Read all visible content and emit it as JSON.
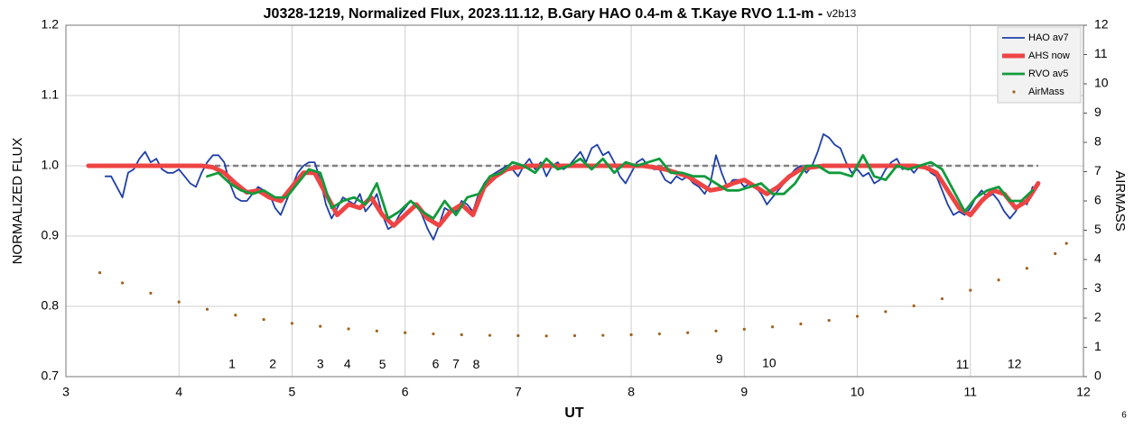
{
  "chart_data": {
    "type": "line",
    "title": "J0328-1219, Normalized Flux, 2023.11.12, B.Gary HAO 0.4-m & T.Kaye RVO 1.1-m - ",
    "title_version": "v2b13",
    "x_label": "UT",
    "y_label": "NORMALIZED FLUX",
    "y2_label": "AIRMASS",
    "footer": "6",
    "xlim": [
      3,
      12
    ],
    "xticks": [
      3,
      4,
      5,
      6,
      7,
      8,
      9,
      10,
      11,
      12
    ],
    "ylim": [
      0.7,
      1.2
    ],
    "yticks": [
      0.7,
      0.8,
      0.9,
      {
        "value": 1,
        "label": "1.0"
      },
      1.1,
      1.2
    ],
    "y2lim": [
      0,
      12
    ],
    "y2ticks": [
      0,
      1,
      2,
      3,
      4,
      5,
      6,
      7,
      8,
      9,
      10,
      11,
      12
    ],
    "grid": true,
    "legend": "upper right",
    "reference_line": {
      "value": 1,
      "x": [
        3.2,
        11.6
      ],
      "color": "#808080"
    },
    "series": [
      {
        "name": "HAO av7",
        "color": "#1f3fa8",
        "width": 1.8,
        "x": [
          3.35,
          3.4,
          3.45,
          3.5,
          3.55,
          3.6,
          3.65,
          3.7,
          3.75,
          3.8,
          3.85,
          3.9,
          3.95,
          4.0,
          4.05,
          4.1,
          4.15,
          4.2,
          4.25,
          4.3,
          4.35,
          4.4,
          4.45,
          4.5,
          4.55,
          4.6,
          4.65,
          4.7,
          4.75,
          4.8,
          4.85,
          4.9,
          4.95,
          5.0,
          5.05,
          5.1,
          5.15,
          5.2,
          5.25,
          5.3,
          5.35,
          5.4,
          5.45,
          5.5,
          5.55,
          5.6,
          5.65,
          5.7,
          5.75,
          5.8,
          5.85,
          5.9,
          5.95,
          6.0,
          6.05,
          6.1,
          6.15,
          6.2,
          6.25,
          6.3,
          6.35,
          6.4,
          6.45,
          6.5,
          6.55,
          6.6,
          6.65,
          6.7,
          6.75,
          6.8,
          6.85,
          6.9,
          6.95,
          7.0,
          7.05,
          7.1,
          7.15,
          7.2,
          7.25,
          7.3,
          7.35,
          7.4,
          7.45,
          7.5,
          7.55,
          7.6,
          7.65,
          7.7,
          7.75,
          7.8,
          7.85,
          7.9,
          7.95,
          8.0,
          8.05,
          8.1,
          8.15,
          8.2,
          8.25,
          8.3,
          8.35,
          8.4,
          8.45,
          8.5,
          8.55,
          8.6,
          8.65,
          8.7,
          8.75,
          8.8,
          8.85,
          8.9,
          8.95,
          9.0,
          9.05,
          9.1,
          9.15,
          9.2,
          9.25,
          9.3,
          9.35,
          9.4,
          9.45,
          9.5,
          9.55,
          9.6,
          9.65,
          9.7,
          9.75,
          9.8,
          9.85,
          9.9,
          9.95,
          10.0,
          10.05,
          10.1,
          10.15,
          10.2,
          10.25,
          10.3,
          10.35,
          10.4,
          10.45,
          10.5,
          10.55,
          10.6,
          10.65,
          10.7,
          10.75,
          10.8,
          10.85,
          10.9,
          10.95,
          11.0,
          11.05,
          11.1,
          11.15,
          11.2,
          11.25,
          11.3,
          11.35,
          11.4,
          11.45,
          11.5,
          11.55
        ],
        "values": [
          0.985,
          0.985,
          0.97,
          0.955,
          0.99,
          0.995,
          1.01,
          1.02,
          1.005,
          1.01,
          0.995,
          0.99,
          0.99,
          0.995,
          0.985,
          0.975,
          0.97,
          0.99,
          1.005,
          1.015,
          1.015,
          1.005,
          0.975,
          0.955,
          0.95,
          0.95,
          0.96,
          0.97,
          0.965,
          0.96,
          0.94,
          0.93,
          0.95,
          0.97,
          0.99,
          1.0,
          1.005,
          1.005,
          0.98,
          0.945,
          0.925,
          0.94,
          0.955,
          0.95,
          0.945,
          0.96,
          0.935,
          0.945,
          0.96,
          0.93,
          0.91,
          0.915,
          0.93,
          0.94,
          0.95,
          0.945,
          0.93,
          0.91,
          0.895,
          0.915,
          0.94,
          0.935,
          0.935,
          0.95,
          0.945,
          0.935,
          0.96,
          0.975,
          0.985,
          0.99,
          0.995,
          1.0,
          0.995,
          0.985,
          1.0,
          1.01,
          0.995,
          1.005,
          0.985,
          1.0,
          1.005,
          0.995,
          1.0,
          1.01,
          1.02,
          1.005,
          1.025,
          1.03,
          1.015,
          1.02,
          1.005,
          0.985,
          0.975,
          0.99,
          1.005,
          1.01,
          1.0,
          0.995,
          0.995,
          0.98,
          0.975,
          0.985,
          0.98,
          0.985,
          0.975,
          0.97,
          0.96,
          0.975,
          1.015,
          0.99,
          0.97,
          0.98,
          0.98,
          0.97,
          0.975,
          0.97,
          0.96,
          0.945,
          0.955,
          0.965,
          0.975,
          0.985,
          0.995,
          1.0,
          0.99,
          1.0,
          1.02,
          1.045,
          1.04,
          1.03,
          1.025,
          1.005,
          0.99,
          0.995,
          0.985,
          0.99,
          0.975,
          0.98,
          0.995,
          1.005,
          1.01,
          0.995,
          1.0,
          0.99,
          1.0,
          1.0,
          0.99,
          0.985,
          0.965,
          0.945,
          0.93,
          0.935,
          0.93,
          0.94,
          0.955,
          0.965,
          0.955,
          0.96,
          0.95,
          0.935,
          0.925,
          0.935,
          0.95,
          0.945,
          0.97
        ]
      },
      {
        "name": "AHS now",
        "color": "#ee4444",
        "width": 5,
        "x": [
          3.2,
          3.3,
          3.4,
          3.5,
          3.6,
          3.7,
          3.8,
          3.9,
          4.0,
          4.1,
          4.2,
          4.3,
          4.4,
          4.5,
          4.6,
          4.7,
          4.8,
          4.9,
          5.0,
          5.1,
          5.2,
          5.3,
          5.4,
          5.5,
          5.6,
          5.7,
          5.8,
          5.9,
          6.0,
          6.1,
          6.2,
          6.3,
          6.4,
          6.5,
          6.6,
          6.7,
          6.8,
          6.9,
          7.0,
          7.1,
          7.2,
          7.3,
          7.4,
          7.5,
          7.6,
          7.7,
          7.8,
          7.9,
          8.0,
          8.1,
          8.2,
          8.3,
          8.4,
          8.5,
          8.6,
          8.7,
          8.8,
          8.9,
          9.0,
          9.1,
          9.2,
          9.3,
          9.4,
          9.5,
          9.6,
          9.7,
          9.8,
          9.9,
          10.0,
          10.1,
          10.2,
          10.3,
          10.4,
          10.5,
          10.6,
          10.7,
          10.8,
          10.9,
          11.0,
          11.1,
          11.2,
          11.3,
          11.4,
          11.5,
          11.6
        ],
        "values": [
          1,
          1,
          1,
          1,
          1,
          1,
          1,
          1,
          1,
          1,
          1,
          0.998,
          0.99,
          0.975,
          0.962,
          0.965,
          0.955,
          0.95,
          0.97,
          0.99,
          0.99,
          0.96,
          0.93,
          0.945,
          0.94,
          0.955,
          0.93,
          0.915,
          0.93,
          0.945,
          0.925,
          0.915,
          0.935,
          0.945,
          0.93,
          0.97,
          0.985,
          0.995,
          0.998,
          1,
          1,
          1,
          1,
          1,
          1,
          1,
          1,
          1,
          1,
          1,
          0.998,
          0.995,
          0.99,
          0.985,
          0.975,
          0.965,
          0.968,
          0.975,
          0.98,
          0.97,
          0.96,
          0.97,
          0.985,
          0.995,
          0.998,
          1,
          1,
          1,
          1,
          1,
          1,
          1,
          1,
          1,
          0.998,
          0.99,
          0.965,
          0.94,
          0.93,
          0.95,
          0.965,
          0.96,
          0.94,
          0.95,
          0.975
        ]
      },
      {
        "name": "RVO av5",
        "color": "#129a3c",
        "width": 2.8,
        "x": [
          4.25,
          4.35,
          4.45,
          4.55,
          4.65,
          4.75,
          4.85,
          4.95,
          5.05,
          5.15,
          5.25,
          5.35,
          5.45,
          5.55,
          5.65,
          5.75,
          5.85,
          5.95,
          6.05,
          6.15,
          6.25,
          6.35,
          6.45,
          6.55,
          6.65,
          6.75,
          6.85,
          6.95,
          7.05,
          7.15,
          7.25,
          7.35,
          7.45,
          7.55,
          7.65,
          7.75,
          7.85,
          7.95,
          8.05,
          8.15,
          8.25,
          8.35,
          8.45,
          8.55,
          8.65,
          8.75,
          8.85,
          8.95,
          9.05,
          9.15,
          9.25,
          9.35,
          9.45,
          9.55,
          9.65,
          9.75,
          9.85,
          9.95,
          10.05,
          10.15,
          10.25,
          10.35,
          10.45,
          10.55,
          10.65,
          10.75,
          10.85,
          10.95,
          11.05,
          11.15,
          11.25,
          11.35,
          11.45,
          11.55
        ],
        "values": [
          0.985,
          0.99,
          0.975,
          0.965,
          0.96,
          0.965,
          0.955,
          0.955,
          0.975,
          0.995,
          0.99,
          0.94,
          0.95,
          0.955,
          0.945,
          0.975,
          0.925,
          0.935,
          0.95,
          0.935,
          0.925,
          0.95,
          0.93,
          0.955,
          0.96,
          0.985,
          0.99,
          1.005,
          1.0,
          0.99,
          1.01,
          0.995,
          1.0,
          1.01,
          0.995,
          1.01,
          0.99,
          1.005,
          1.0,
          1.005,
          1.01,
          0.99,
          0.99,
          0.985,
          0.985,
          0.975,
          0.965,
          0.965,
          0.97,
          0.975,
          0.96,
          0.96,
          0.975,
          1.0,
          1.0,
          0.99,
          0.99,
          0.985,
          1.015,
          0.985,
          0.98,
          1.0,
          0.995,
          1.0,
          1.005,
          0.995,
          0.965,
          0.935,
          0.955,
          0.965,
          0.97,
          0.95,
          0.95,
          0.965
        ]
      },
      {
        "name": "AirMass",
        "color": "#a0621e",
        "axis": "y2",
        "marker": "dot",
        "x": [
          3.3,
          3.5,
          3.75,
          4.0,
          4.25,
          4.5,
          4.75,
          5.0,
          5.25,
          5.5,
          5.75,
          6.0,
          6.25,
          6.5,
          6.75,
          7.0,
          7.25,
          7.5,
          7.75,
          8.0,
          8.25,
          8.5,
          8.75,
          9.0,
          9.25,
          9.5,
          9.75,
          10.0,
          10.25,
          10.5,
          10.75,
          11.0,
          11.25,
          11.5,
          11.75,
          11.85
        ],
        "values": [
          3.55,
          3.2,
          2.85,
          2.55,
          2.3,
          2.1,
          1.95,
          1.82,
          1.72,
          1.63,
          1.56,
          1.5,
          1.46,
          1.43,
          1.41,
          1.4,
          1.39,
          1.4,
          1.41,
          1.43,
          1.46,
          1.5,
          1.56,
          1.62,
          1.7,
          1.8,
          1.92,
          2.06,
          2.22,
          2.42,
          2.66,
          2.95,
          3.3,
          3.7,
          4.2,
          4.55
        ]
      }
    ],
    "annotations": [
      {
        "text": "1",
        "x": 4.47,
        "y": 0.717
      },
      {
        "text": "2",
        "x": 4.83,
        "y": 0.717
      },
      {
        "text": "3",
        "x": 5.25,
        "y": 0.717
      },
      {
        "text": "4",
        "x": 5.49,
        "y": 0.717
      },
      {
        "text": "5",
        "x": 5.8,
        "y": 0.716
      },
      {
        "text": "6",
        "x": 6.27,
        "y": 0.717
      },
      {
        "text": "7",
        "x": 6.45,
        "y": 0.717
      },
      {
        "text": "8",
        "x": 6.63,
        "y": 0.716
      },
      {
        "text": "9",
        "x": 8.78,
        "y": 0.724
      },
      {
        "text": "10",
        "x": 9.22,
        "y": 0.718
      },
      {
        "text": "11",
        "x": 10.93,
        "y": 0.716
      },
      {
        "text": "12",
        "x": 11.39,
        "y": 0.717
      }
    ]
  }
}
